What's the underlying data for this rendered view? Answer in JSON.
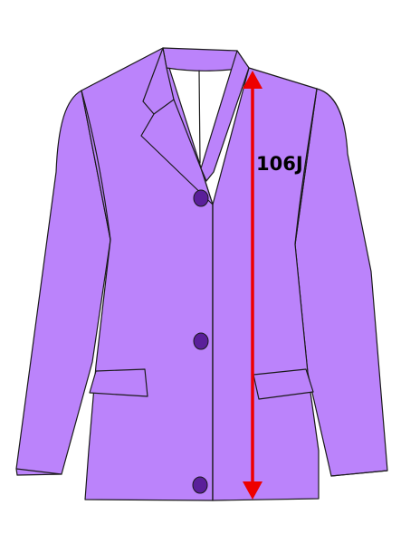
{
  "measurement": {
    "label": "106J"
  },
  "colors": {
    "jacket_fill": "#bb83fb",
    "outline": "#1a1a1a",
    "button_fill": "#5a1f9a",
    "measure_line": "#ee0000",
    "label_text": "#000000"
  },
  "icons": {
    "garment": "jacket-icon",
    "button": "button-icon",
    "arrow": "double-headed-arrow-icon"
  }
}
